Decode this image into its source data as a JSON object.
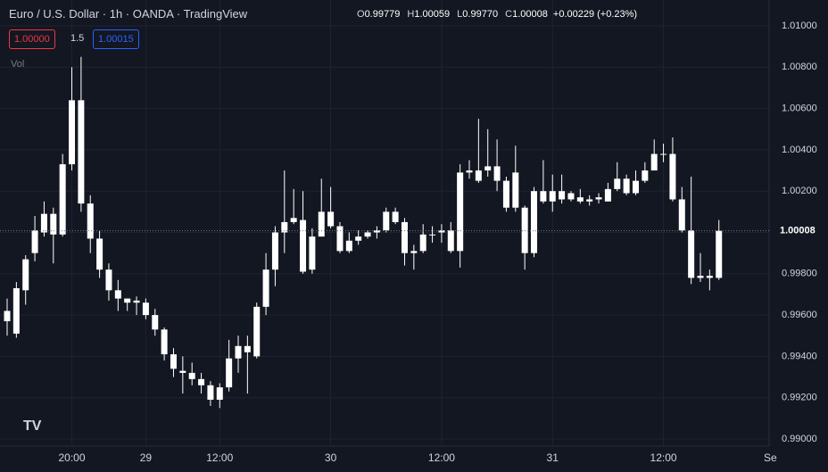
{
  "header": {
    "symbol": "Euro / U.S. Dollar",
    "interval": "1h",
    "exchange": "OANDA",
    "source": "TradingView",
    "quote": [
      {
        "key": "O",
        "value": "0.99779"
      },
      {
        "key": "H",
        "value": "1.00059"
      },
      {
        "key": "L",
        "value": "0.99770"
      },
      {
        "key": "C",
        "value": "1.00008"
      }
    ],
    "change": "+0.00229 (+0.23%)",
    "sell": "1.00000",
    "spread": "1.5",
    "buy": "1.00015",
    "volume": "Vol"
  },
  "chart_data": {
    "type": "candlestick",
    "categories": [
      null,
      null,
      null,
      null,
      null,
      null,
      null,
      "20:00",
      null,
      null,
      null,
      null,
      null,
      null,
      null,
      "29",
      null,
      null,
      null,
      null,
      null,
      null,
      null,
      "12:00",
      null,
      null,
      null,
      null,
      null,
      null,
      null,
      null,
      null,
      null,
      null,
      "30",
      null,
      null,
      null,
      null,
      null,
      null,
      null,
      null,
      null,
      null,
      null,
      "12:00",
      null,
      null,
      null,
      null,
      null,
      null,
      null,
      null,
      null,
      null,
      null,
      "31",
      null,
      null,
      null,
      null,
      null,
      null,
      null,
      null,
      null,
      null,
      null,
      "12:00",
      null,
      null,
      null,
      null,
      null,
      null
    ],
    "x_axis_edge_label": "Se",
    "open": [
      0.9957,
      0.9951,
      0.9972,
      0.999,
      1.0,
      1.0009,
      0.9999,
      1.0033,
      1.0064,
      1.0014,
      0.9997,
      0.9982,
      0.9972,
      0.9968,
      0.9966,
      0.9966,
      0.996,
      0.9953,
      0.9941,
      0.9933,
      0.9932,
      0.9929,
      0.9926,
      0.9919,
      0.9925,
      0.9939,
      0.9945,
      0.994,
      0.9964,
      0.9982,
      1.0,
      1.0005,
      1.0006,
      0.9982,
      0.9998,
      1.001,
      1.0003,
      0.9991,
      0.9996,
      0.9998,
      1.0,
      1.0001,
      1.001,
      1.0005,
      0.999,
      0.9991,
      0.9999,
      1.0,
      1.0001,
      0.9991,
      1.0029,
      1.003,
      1.003,
      1.0032,
      1.0025,
      1.0029,
      1.0012,
      0.999,
      1.002,
      1.0015,
      1.002,
      1.0016,
      1.0017,
      1.0015,
      1.0016,
      1.0015,
      1.0021,
      1.0026,
      1.0019,
      1.0025,
      1.003,
      1.0038,
      1.0038,
      1.0016,
      1.0001,
      0.9979,
      0.9979,
      0.9978
    ],
    "high": [
      0.9968,
      0.9976,
      0.9989,
      1.0008,
      1.0015,
      1.0012,
      1.0038,
      1.008,
      1.0085,
      1.0018,
      1.0001,
      0.9985,
      0.9977,
      0.9968,
      0.9969,
      0.9968,
      0.9963,
      0.9954,
      0.9944,
      0.994,
      0.9937,
      0.9932,
      0.9928,
      0.9927,
      0.9948,
      0.995,
      0.995,
      0.9966,
      0.999,
      1.0003,
      1.003,
      1.0021,
      1.002,
      1.0002,
      1.0026,
      1.0022,
      1.0005,
      1.0,
      1.0001,
      1.0001,
      1.0003,
      1.0012,
      1.0012,
      1.0007,
      0.9994,
      1.0004,
      1.0003,
      1.0004,
      1.0005,
      1.0033,
      1.0035,
      1.0055,
      1.005,
      1.0045,
      1.0027,
      1.0042,
      1.0013,
      1.0022,
      1.0035,
      1.0028,
      1.0028,
      1.002,
      1.0021,
      1.0018,
      1.0019,
      1.0024,
      1.0034,
      1.0028,
      1.003,
      1.0034,
      1.0045,
      1.0043,
      1.0046,
      1.0022,
      1.0027,
      0.999,
      0.9982,
      1.0006
    ],
    "low": [
      0.995,
      0.9949,
      0.9965,
      0.9986,
      0.9998,
      0.9985,
      0.9998,
      1.003,
      1.001,
      0.999,
      0.9978,
      0.9967,
      0.9962,
      0.9962,
      0.996,
      0.9958,
      0.995,
      0.9938,
      0.993,
      0.9922,
      0.9926,
      0.9922,
      0.9916,
      0.9915,
      0.9923,
      0.9932,
      0.9922,
      0.9939,
      0.996,
      0.9974,
      0.999,
      1.0004,
      0.998,
      0.998,
      0.9998,
      1.0002,
      0.999,
      0.999,
      0.9994,
      0.9997,
      0.9997,
      1.0,
      1.0004,
      0.9984,
      0.9982,
      0.999,
      0.9995,
      0.9995,
      0.999,
      0.9983,
      1.0026,
      1.0024,
      1.0027,
      1.002,
      1.001,
      1.001,
      0.9982,
      0.9988,
      1.0014,
      1.001,
      1.0014,
      1.0015,
      1.0014,
      1.0013,
      1.0014,
      1.0015,
      1.002,
      1.0018,
      1.0018,
      1.0024,
      1.003,
      1.0034,
      1.0015,
      1.0,
      0.9975,
      0.9976,
      0.9972,
      0.9977
    ],
    "close": [
      0.9962,
      0.9973,
      0.9987,
      1.0001,
      1.0009,
      0.9999,
      1.0033,
      1.0064,
      1.0014,
      0.9997,
      0.9982,
      0.9972,
      0.9968,
      0.9966,
      0.9967,
      0.996,
      0.9953,
      0.9941,
      0.9934,
      0.9932,
      0.9929,
      0.9926,
      0.9919,
      0.9925,
      0.9939,
      0.9945,
      0.9942,
      0.9964,
      0.9982,
      1.0,
      1.0005,
      1.0007,
      0.9981,
      0.9998,
      1.001,
      1.0003,
      0.9991,
      0.9996,
      0.9998,
      1.0,
      1.0001,
      1.001,
      1.0005,
      0.999,
      0.9991,
      0.9999,
      0.9999,
      1.0001,
      0.9991,
      1.0029,
      1.003,
      1.0025,
      1.0032,
      1.0025,
      1.0012,
      1.0012,
      0.999,
      1.002,
      1.0015,
      1.002,
      1.0016,
      1.0019,
      1.0015,
      1.0016,
      1.0017,
      1.0021,
      1.0026,
      1.0019,
      1.0025,
      1.003,
      1.0038,
      1.0038,
      1.0016,
      1.0001,
      0.9978,
      0.9978,
      0.9978,
      1.00008
    ],
    "up_color": "#ffffff",
    "down_color": "#ffffff",
    "last_price": {
      "value": 1.00008,
      "label": "1.00008"
    },
    "ylim": [
      0.99,
      1.01
    ],
    "yticks": [
      {
        "value": 0.99,
        "label": "0.99000"
      },
      {
        "value": 0.992,
        "label": "0.99200"
      },
      {
        "value": 0.994,
        "label": "0.99400"
      },
      {
        "value": 0.996,
        "label": "0.99600"
      },
      {
        "value": 0.998,
        "label": "0.99800"
      },
      {
        "value": 1.0,
        "label": "1.00000"
      },
      {
        "value": 1.002,
        "label": "1.00200"
      },
      {
        "value": 1.004,
        "label": "1.00400"
      },
      {
        "value": 1.006,
        "label": "1.00600"
      },
      {
        "value": 1.008,
        "label": "1.00800"
      },
      {
        "value": 1.01,
        "label": "1.01000"
      }
    ],
    "grid": true
  }
}
